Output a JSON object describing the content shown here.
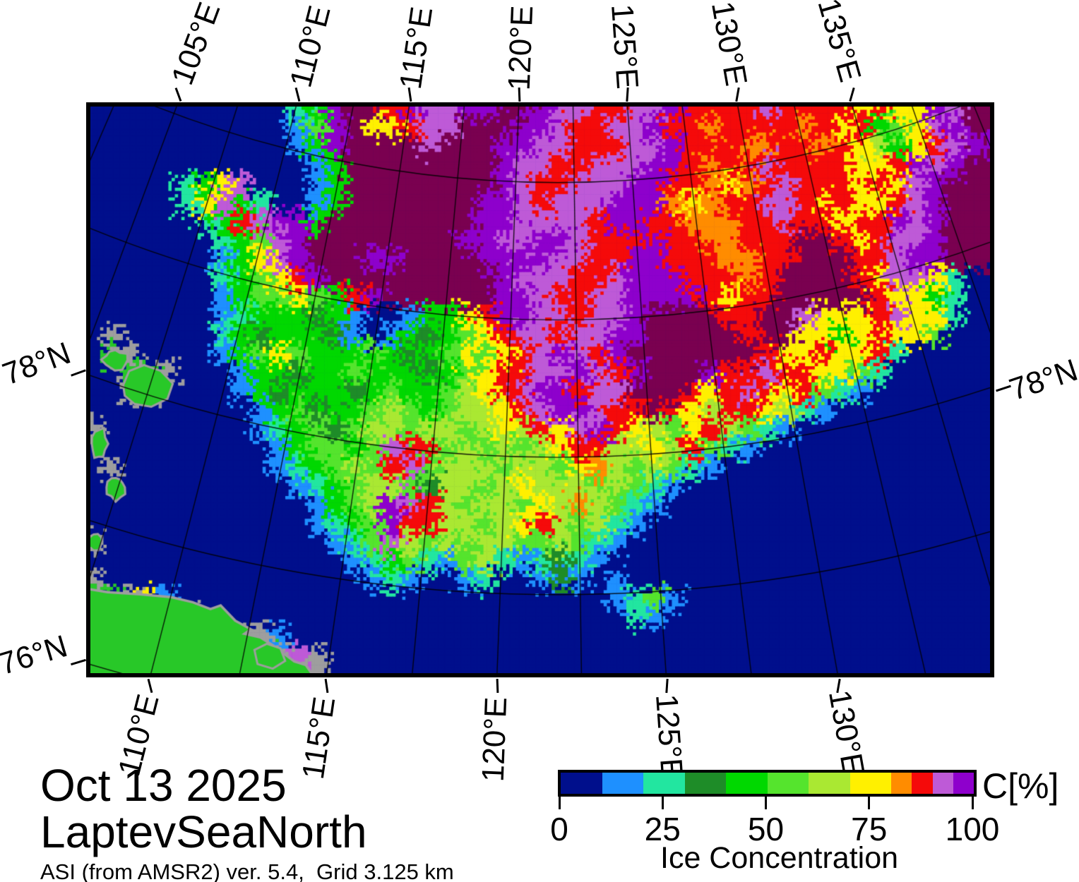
{
  "titles": {
    "date": "Oct 13 2025",
    "region": "LaptevSeaNorth",
    "product": "ASI (from AMSR2) ver. 5.4,  Grid 3.125 km"
  },
  "axis": {
    "top": [
      "105°E",
      "110°E",
      "115°E",
      "120°E",
      "125°E",
      "130°E",
      "135°E"
    ],
    "bottom": [
      "110°E",
      "115°E",
      "120°E",
      "125°E",
      "130°E"
    ],
    "lat": [
      "78°N",
      "76°N",
      "78°N"
    ]
  },
  "colorbar": {
    "unit": "C[%]",
    "label": "Ice Concentration",
    "ticks": [
      "0",
      "25",
      "50",
      "75",
      "100"
    ],
    "tick_values": [
      0,
      25,
      50,
      75,
      100
    ],
    "segments": [
      {
        "color": "#000f8c",
        "range": [
          0,
          10
        ],
        "width": 2
      },
      {
        "color": "#1e90ff",
        "range": [
          10,
          20
        ],
        "width": 2
      },
      {
        "color": "#22e6a0",
        "range": [
          20,
          30
        ],
        "width": 2
      },
      {
        "color": "#1e8c28",
        "range": [
          30,
          40
        ],
        "width": 2
      },
      {
        "color": "#00d800",
        "range": [
          40,
          50
        ],
        "width": 2
      },
      {
        "color": "#55e42d",
        "range": [
          50,
          60
        ],
        "width": 2
      },
      {
        "color": "#aae832",
        "range": [
          60,
          70
        ],
        "width": 2
      },
      {
        "color": "#fff000",
        "range": [
          70,
          80
        ],
        "width": 2
      },
      {
        "color": "#ff8c00",
        "range": [
          80,
          85
        ],
        "width": 1
      },
      {
        "color": "#f50a0a",
        "range": [
          85,
          90
        ],
        "width": 1
      },
      {
        "color": "#be5ad7",
        "range": [
          90,
          95
        ],
        "width": 1
      },
      {
        "color": "#8e00cc",
        "range": [
          95,
          100
        ],
        "width": 1
      }
    ]
  },
  "map_raster": {
    "palette": {
      "N": "#000f8c",
      "b": "#1e90ff",
      "t": "#22e6a0",
      "d": "#1e8c28",
      "E": "#00d800",
      "g": "#55e42d",
      "y": "#aae832",
      "Y": "#fff000",
      "O": "#ff8c00",
      "R": "#f50a0a",
      "V": "#be5ad7",
      "P": "#8e00cc",
      "M": "#7a0050",
      "L": "#28c828",
      "G": "#9e9e9e"
    },
    "rows": [
      "NNNNNNNNNNNtEPMMRPVVPPMMPVVRRVVPRRRRVRRRRYRYYPVM",
      "NNNNNNNNNNNbgPMYYRVVMMMPPVRRVVPRRORRRRORYREgYVPM",
      "NNNNNNNNNNNbEPMMMMVMMMPPVVRRRVVPRRROORRORYyEYRVP",
      "NNNNNNNNNNNNbEMMMMMMMMPVVRRVVVPPRORRVRRRRYYRPVPM",
      "NNNNNtEYVNNNbEMMMMMMMMPVRRVVVPPRROYORVRRRYRYVPMM",
      "NNNNNtYVEtNNbEMMMMMMMPPVRVVVPPPOYORRVVRYRYYRVPMM",
      "NNNNNNtERVPPEMMMMMMMMPPVVVVRPPRROOORRVRRYRRPVPMM",
      "NNNNNNNtEgVPMMMMMMMMPPVVPPVRRRPRROORRRMMRYRVVPMM",
      "NNNNNNNbEYVPMMMPPMMMMPPPPVVRRPPRRROORRMMMRRVPPMM",
      "NNNNNNNtEgYRPMMMMMMMMMPVVVRRVPPPRRRORMMMMRYVVYtN",
      "NNNNNNNbEggYgERPMMMMMMPPVRRVVPPPPRYRRMMMMMRYYEtN",
      "NNNNNNNbtEEEdEbNNbEEYRPPVVRVVPMMMMRRMMVYYYRVYYtN",
      "NGNNNNNtEdEEEdbNbEdEgYRVVRVVPPMMMMMRMMYYEYRYYgNN",
      "NLGNNNNbEgYgEEEgEdEgYgYRVPVRPMMMMMMMRYYRYYRtNNNN",
      "NNLLGNNNbEEdEEgEEEdEgYRRVVPVRPMMMPRRVRRYYgtNNNNN",
      "NNGGNNNNbEdEEEdEgEEgyYRVPPRVVMMMRYRVRYRgtbNNNNNN",
      "NNNNNNNNNbEgdEEgygEgyyYRVPPVRRMRYyRRYytbNNNNNNNN",
      "GNNNNNNNNbtEgdgyygyygyYyRYVPRYygYRygtbNNNNNNNNNN",
      "NNNNNNNNNNbEggEgVRRgygygyYRRyyYyRgtbNNNNNNNNNNNN",
      "NGNNNNNNNNbtEgygRVgyyygyygYOygygtbNNNNNNNNNNNNNN",
      "NNNNNNNNNNNbtEgyygdyygyYyyygygtbNNNNNNNNNNNNNNNN",
      "NNNNNNNNNNNNbEgyPVRygyygYyOygtbNNNNNNNNNNNNNNNNN",
      "NNNNNNNNNNNNbtEgPRRyygyYRygytbNNNNNNNNNNNNNNNNNN",
      "GNNNNNNNNNNNNbtgVygygyyggygtbNNNNNNNNNNNNNNNNNNN",
      "NNNNNNNNNNNNNNbtEgtbgytbtdtbNNNNNNNNNNNNNNNNNNNN",
      "GNNNNNNNNNNNNNNbtbNNbtNNbdbNbNNNNNNNNNNNNNNNNNNN",
      "LLGYbNNNNNNNNNNNNNNNNNNNNNNNbtgbNNNNNNNNNNNNNNNN",
      "LLLLGGNNNNNNNNNNNNNNNNNNNNNNNtbNNNNNNNNNNNNNNNNN",
      "LLLLLLLGGGbNNNNNNNNNNNNNNNNNNNNNNNNNNNNNNNNNNNNN",
      "LLLLLLLLLLGVGNNNNNNNNNNNNNNNNNNNNNNNNNNNNNNNNNNN"
    ]
  }
}
